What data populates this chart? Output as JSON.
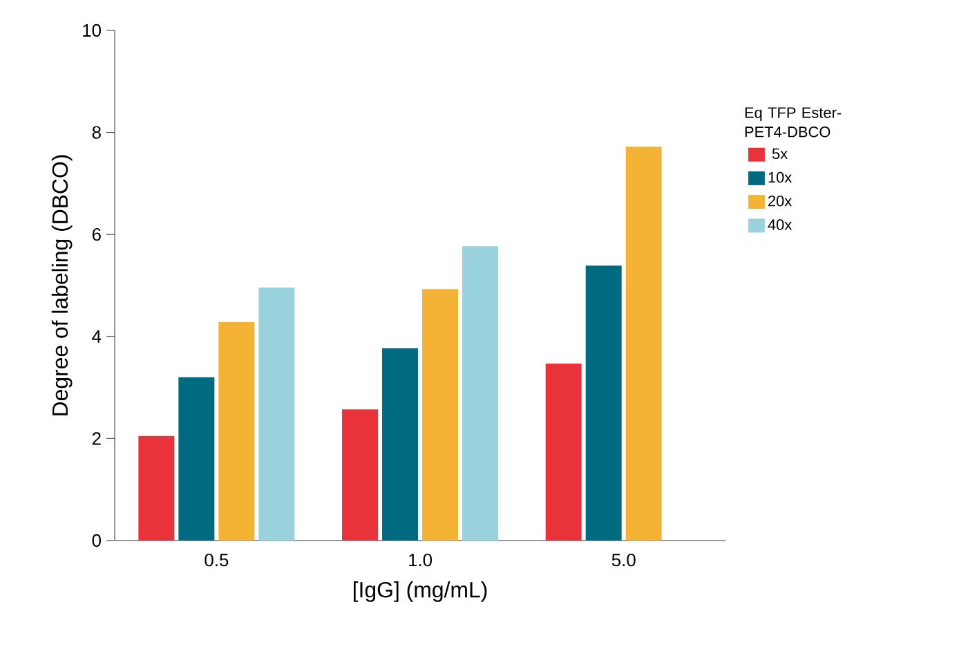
{
  "chart_data": {
    "type": "bar",
    "xlabel": "[IgG] (mg/mL)",
    "ylabel": "Degree of labeling (DBCO)",
    "legend_title": "Eq TFP Ester-PET4-DBCO",
    "categories": [
      "0.5",
      "1.0",
      "5.0"
    ],
    "series": [
      {
        "name": "5x",
        "color": "#e8333a",
        "values": [
          2.05,
          2.57,
          3.47
        ]
      },
      {
        "name": "10x",
        "color": "#006a80",
        "values": [
          3.2,
          3.77,
          5.39
        ]
      },
      {
        "name": "20x",
        "color": "#f5b335",
        "values": [
          4.28,
          4.93,
          7.72
        ]
      },
      {
        "name": "40x",
        "color": "#99d1dc",
        "values": [
          4.96,
          5.77,
          null
        ]
      }
    ],
    "ylim": [
      0,
      10
    ],
    "yticks": [
      0,
      2,
      4,
      6,
      8,
      10
    ],
    "legend": "right"
  }
}
